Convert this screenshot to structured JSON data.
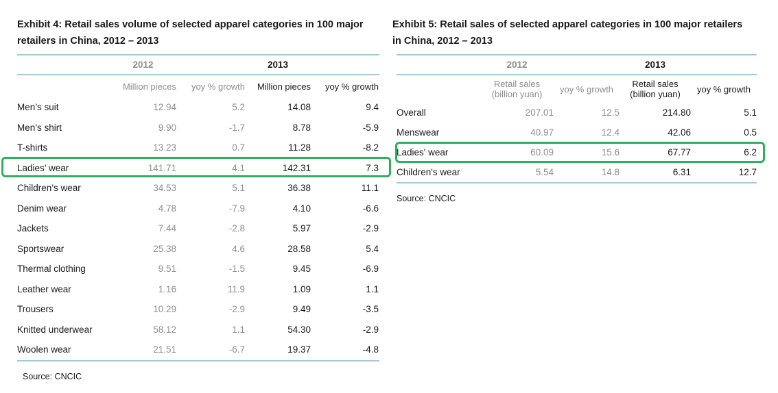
{
  "colors": {
    "highlight_green": "#2fae5e",
    "rule_blue": "#a6c9d8",
    "secondary_gray": "#8e8e8e",
    "text_black": "#1a1a1a"
  },
  "exhibit4": {
    "title": "Exhibit 4: Retail sales volume of selected apparel categories in 100 major retailers in China, 2012 – 2013",
    "year_2012": "2012",
    "year_2013": "2013",
    "subheaders": {
      "v2012": "Million pieces",
      "g2012": "yoy % growth",
      "v2013": "Million pieces",
      "g2013": "yoy % growth"
    },
    "rows": [
      {
        "category": "Men’s suit",
        "v2012": "12.94",
        "g2012": "5.2",
        "v2013": "14.08",
        "g2013": "9.4",
        "highlight": false
      },
      {
        "category": "Men’s shirt",
        "v2012": "9.90",
        "g2012": "-1.7",
        "v2013": "8.78",
        "g2013": "-5.9",
        "highlight": false
      },
      {
        "category": "T-shirts",
        "v2012": "13.23",
        "g2012": "0.7",
        "v2013": "11.28",
        "g2013": "-8.2",
        "highlight": false
      },
      {
        "category": "Ladies’ wear",
        "v2012": "141.71",
        "g2012": "4.1",
        "v2013": "142.31",
        "g2013": "7.3",
        "highlight": true
      },
      {
        "category": "Children’s wear",
        "v2012": "34.53",
        "g2012": "5.1",
        "v2013": "36.38",
        "g2013": "11.1",
        "highlight": false
      },
      {
        "category": "Denim wear",
        "v2012": "4.78",
        "g2012": "-7.9",
        "v2013": "4.10",
        "g2013": "-6.6",
        "highlight": false
      },
      {
        "category": "Jackets",
        "v2012": "7.44",
        "g2012": "-2.8",
        "v2013": "5.97",
        "g2013": "-2.9",
        "highlight": false
      },
      {
        "category": "Sportswear",
        "v2012": "25.38",
        "g2012": "4.6",
        "v2013": "28.58",
        "g2013": "5.4",
        "highlight": false
      },
      {
        "category": "Thermal clothing",
        "v2012": "9.51",
        "g2012": "-1.5",
        "v2013": "9.45",
        "g2013": "-6.9",
        "highlight": false
      },
      {
        "category": "Leather wear",
        "v2012": "1.16",
        "g2012": "11.9",
        "v2013": "1.09",
        "g2013": "1.1",
        "highlight": false
      },
      {
        "category": "Trousers",
        "v2012": "10.29",
        "g2012": "-2.9",
        "v2013": "9.49",
        "g2013": "-3.5",
        "highlight": false
      },
      {
        "category": "Knitted underwear",
        "v2012": "58.12",
        "g2012": "1.1",
        "v2013": "54.30",
        "g2013": "-2.9",
        "highlight": false
      },
      {
        "category": "Woolen wear",
        "v2012": "21.51",
        "g2012": "-6.7",
        "v2013": "19.37",
        "g2013": "-4.8",
        "highlight": false
      }
    ],
    "source": "Source: CNCIC"
  },
  "exhibit5": {
    "title": "Exhibit 5: Retail sales of selected apparel categories in 100 major retailers in China, 2012 – 2013",
    "year_2012": "2012",
    "year_2013": "2013",
    "subheaders": {
      "v2012": "Retail sales\n(billion yuan)",
      "g2012": "yoy % growth",
      "v2013": "Retail sales\n(billion yuan)",
      "g2013": "yoy % growth"
    },
    "rows": [
      {
        "category": "Overall",
        "v2012": "207.01",
        "g2012": "12.5",
        "v2013": "214.80",
        "g2013": "5.1",
        "highlight": false
      },
      {
        "category": "Menswear",
        "v2012": "40.97",
        "g2012": "12.4",
        "v2013": "42.06",
        "g2013": "0.5",
        "highlight": false
      },
      {
        "category": "Ladies' wear",
        "v2012": "60.09",
        "g2012": "15.6",
        "v2013": "67.77",
        "g2013": "6.2",
        "highlight": true
      },
      {
        "category": "Children's wear",
        "v2012": "5.54",
        "g2012": "14.8",
        "v2013": "6.31",
        "g2013": "12.7",
        "highlight": false
      }
    ],
    "source": "Source: CNCIC"
  }
}
